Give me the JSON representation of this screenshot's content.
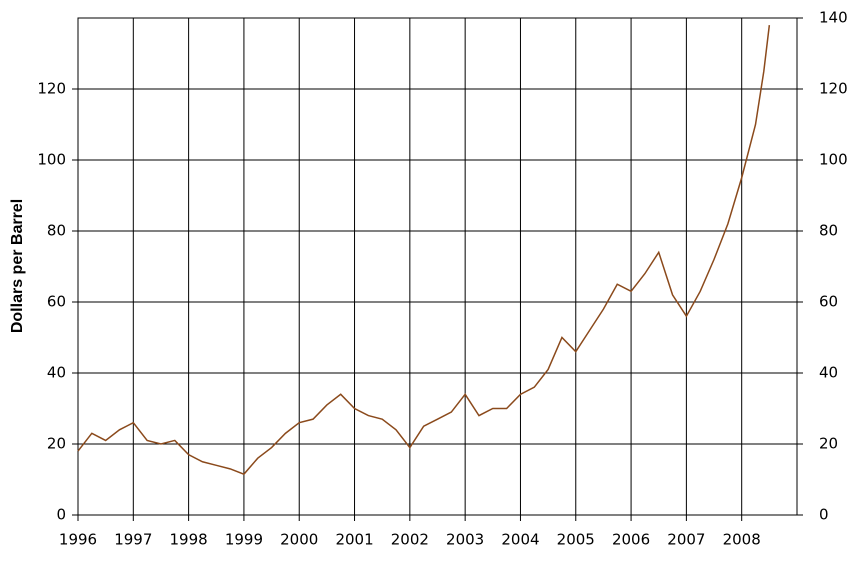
{
  "chart_data": {
    "type": "line",
    "y_label": "Dollars per Barrel",
    "x": [
      1996.0,
      1996.25,
      1996.5,
      1996.75,
      1997.0,
      1997.25,
      1997.5,
      1997.75,
      1998.0,
      1998.25,
      1998.5,
      1998.75,
      1999.0,
      1999.25,
      1999.5,
      1999.75,
      2000.0,
      2000.25,
      2000.5,
      2000.75,
      2001.0,
      2001.25,
      2001.5,
      2001.75,
      2002.0,
      2002.25,
      2002.5,
      2002.75,
      2003.0,
      2003.25,
      2003.5,
      2003.75,
      2004.0,
      2004.25,
      2004.5,
      2004.75,
      2005.0,
      2005.25,
      2005.5,
      2005.75,
      2006.0,
      2006.25,
      2006.5,
      2006.75,
      2007.0,
      2007.25,
      2007.5,
      2007.75,
      2008.0,
      2008.25,
      2008.4,
      2008.5
    ],
    "series": [
      {
        "color": "#8b4a1c",
        "values": [
          18,
          23,
          21,
          24,
          26,
          21,
          20,
          21,
          17,
          15,
          14,
          13,
          11.5,
          16,
          19,
          23,
          26,
          27,
          31,
          34,
          30,
          28,
          27,
          24,
          19,
          25,
          27,
          29,
          34,
          28,
          30,
          30,
          34,
          36,
          41,
          50,
          46,
          52,
          58,
          65,
          63,
          68,
          74,
          62,
          56,
          63,
          72,
          82,
          95,
          110,
          125,
          138
        ]
      }
    ],
    "xlim": [
      1996,
      2009
    ],
    "xticks": [
      1996,
      1997,
      1998,
      1999,
      2000,
      2001,
      2002,
      2003,
      2004,
      2005,
      2006,
      2007,
      2008
    ],
    "ylim": [
      0,
      140
    ],
    "yticks": [
      0,
      20,
      40,
      60,
      80,
      100,
      120
    ],
    "y2lim": [
      0,
      140
    ],
    "y2ticks": [
      0,
      20,
      40,
      60,
      80,
      100,
      120,
      140
    ],
    "grid": true
  }
}
